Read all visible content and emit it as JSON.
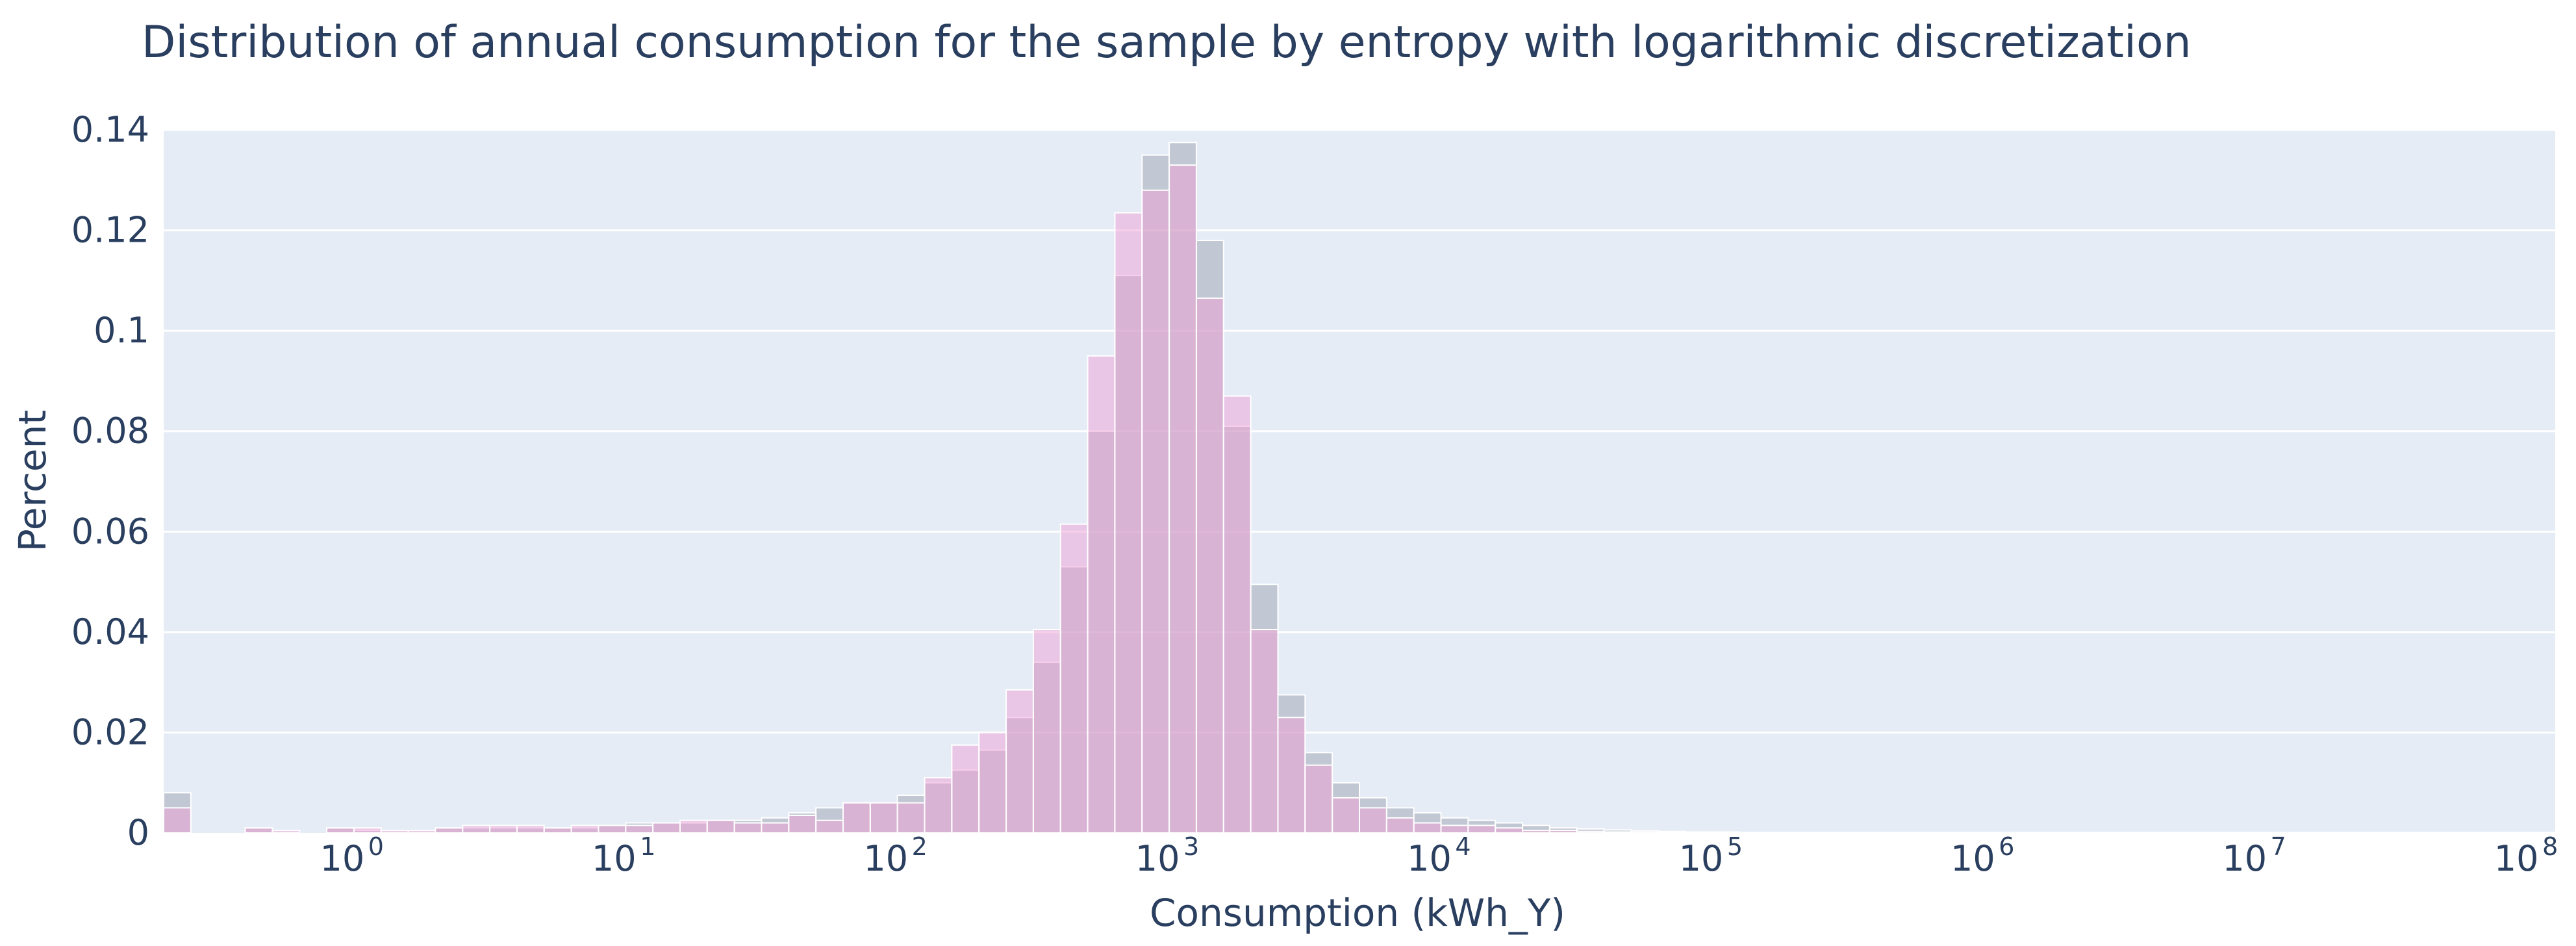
{
  "chart_data": {
    "type": "bar",
    "title": "Distribution of annual consumption for the sample by entropy with logarithmic discretization",
    "xlabel": "Consumption (kWh_Y)",
    "ylabel": "Percent",
    "xscale": "log",
    "xlim_log10": [
      -0.7,
      8.1
    ],
    "ylim": [
      0,
      0.14
    ],
    "y_ticks": [
      0,
      0.02,
      0.04,
      0.06,
      0.08,
      0.1,
      0.12,
      0.14
    ],
    "y_tick_labels": [
      "0",
      "0.02",
      "0.04",
      "0.06",
      "0.08",
      "0.1",
      "0.12",
      "0.14"
    ],
    "x_ticks_log10": [
      0,
      1,
      2,
      3,
      4,
      5,
      6,
      7,
      8
    ],
    "x_tick_base": "10",
    "x_tick_exponents": [
      "0",
      "1",
      "2",
      "3",
      "4",
      "5",
      "6",
      "7",
      "8"
    ],
    "bin_start_log10": -0.7,
    "bin_width_log10": 0.1,
    "grid": true,
    "colors": {
      "background": "#e5ecf6",
      "grid": "#ffffff",
      "series_gray": "#a4aab6",
      "series_pink": "#f0a0d5"
    },
    "series": [
      {
        "name": "series-gray",
        "values": [
          0.008,
          0,
          0,
          0.001,
          0,
          0,
          0.001,
          0.0005,
          0,
          0,
          0.001,
          0.001,
          0.001,
          0.001,
          0.001,
          0.001,
          0.0015,
          0.002,
          0.002,
          0.002,
          0.0025,
          0.0025,
          0.003,
          0.004,
          0.005,
          0.006,
          0.006,
          0.0075,
          0.01,
          0.0125,
          0.0165,
          0.023,
          0.034,
          0.053,
          0.08,
          0.111,
          0.135,
          0.1375,
          0.118,
          0.081,
          0.0495,
          0.0275,
          0.016,
          0.01,
          0.007,
          0.005,
          0.004,
          0.003,
          0.0025,
          0.002,
          0.0015,
          0.001,
          0.0008,
          0.0006,
          0.0004,
          0.0003,
          0.0002,
          0.0002,
          0.0001,
          0.0001,
          0.0001,
          0.0001,
          0.0001,
          0.0001,
          0.0001,
          0.0001,
          0.0001,
          0.0001,
          0.0001,
          0.0001,
          0.0001,
          0.0001,
          0.0001,
          0.0001,
          0.0001,
          0.0001,
          0.0001,
          0.0001,
          0.0001,
          0.0001,
          0.0001,
          0.0001,
          0.0001,
          0.0001,
          0.0001,
          0.0001,
          0.0001,
          0.0001
        ]
      },
      {
        "name": "series-pink",
        "values": [
          0.005,
          0,
          0,
          0.001,
          0.0005,
          0,
          0.001,
          0.001,
          0.0005,
          0.0005,
          0.001,
          0.0015,
          0.0015,
          0.0015,
          0.001,
          0.0015,
          0.0015,
          0.0015,
          0.002,
          0.0025,
          0.0025,
          0.002,
          0.002,
          0.0035,
          0.0025,
          0.006,
          0.006,
          0.006,
          0.011,
          0.0175,
          0.02,
          0.0285,
          0.0405,
          0.0615,
          0.095,
          0.1235,
          0.128,
          0.133,
          0.1065,
          0.087,
          0.0405,
          0.023,
          0.0135,
          0.007,
          0.005,
          0.003,
          0.002,
          0.0015,
          0.0015,
          0.001,
          0.0005,
          0.0005,
          0.0003,
          0.0002,
          0.0001,
          0.0001,
          0.0001,
          0,
          0,
          0,
          0,
          0,
          0,
          0,
          0,
          0,
          0,
          0,
          0,
          0,
          0,
          0,
          0,
          0,
          0,
          0,
          0,
          0,
          0,
          0,
          0,
          0,
          0,
          0,
          0,
          0,
          0,
          0
        ]
      }
    ]
  }
}
